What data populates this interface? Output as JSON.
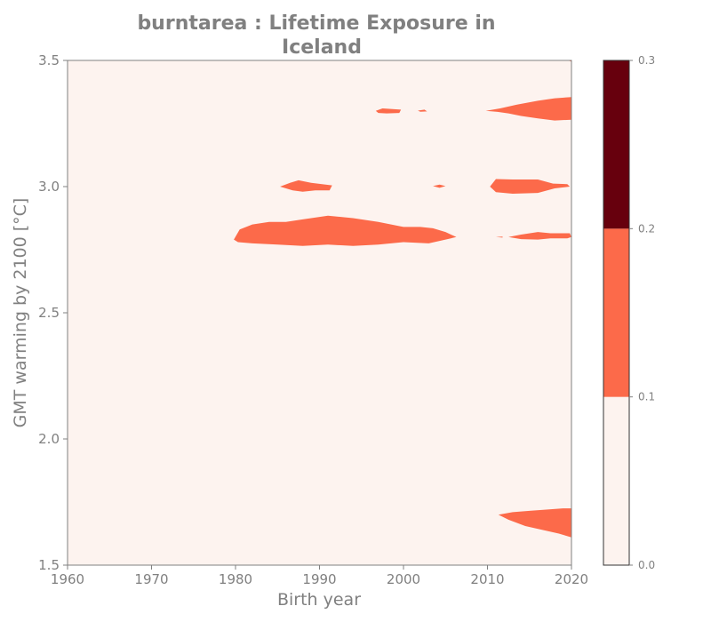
{
  "chart_data": {
    "type": "heatmap",
    "title_lines": [
      "burntarea : Lifetime Exposure in",
      "Iceland"
    ],
    "xlabel": "Birth year",
    "ylabel": "GMT warming by 2100 [°C]",
    "xlim": [
      1960,
      2020
    ],
    "ylim": [
      1.5,
      3.5
    ],
    "x_ticks": [
      "1960",
      "1970",
      "1980",
      "1990",
      "2000",
      "2010",
      "2020"
    ],
    "y_ticks": [
      "1.5",
      "2.0",
      "2.5",
      "3.0",
      "3.5"
    ],
    "colorbar": {
      "ticks": [
        "0.0",
        "0.1",
        "0.2",
        "0.3"
      ],
      "levels": [
        0.0,
        0.1,
        0.2,
        0.3
      ],
      "colors": [
        "#fdf3ef",
        "#fc6a4a",
        "#67000d"
      ]
    },
    "background_level_color": "#fdf3ef",
    "regions": [
      {
        "level": "0.1-0.2",
        "points": [
          [
            1979.8,
            2.79
          ],
          [
            1980.5,
            2.83
          ],
          [
            1982,
            2.85
          ],
          [
            1984,
            2.86
          ],
          [
            1986,
            2.86
          ],
          [
            1988,
            2.87
          ],
          [
            1991,
            2.885
          ],
          [
            1994,
            2.875
          ],
          [
            1997,
            2.86
          ],
          [
            2000,
            2.84
          ],
          [
            2002,
            2.84
          ],
          [
            2003.5,
            2.835
          ],
          [
            2005,
            2.82
          ],
          [
            2006.3,
            2.8
          ],
          [
            2005,
            2.79
          ],
          [
            2003,
            2.775
          ],
          [
            2000,
            2.78
          ],
          [
            1997,
            2.77
          ],
          [
            1994,
            2.765
          ],
          [
            1991,
            2.77
          ],
          [
            1988,
            2.765
          ],
          [
            1985,
            2.77
          ],
          [
            1982,
            2.775
          ],
          [
            1980.3,
            2.78
          ]
        ]
      },
      {
        "level": "0.1-0.2",
        "points": [
          [
            1985.3,
            3.0
          ],
          [
            1986.5,
            3.015
          ],
          [
            1987.5,
            3.025
          ],
          [
            1989,
            3.015
          ],
          [
            1991.5,
            3.005
          ],
          [
            1991.2,
            2.985
          ],
          [
            1989.5,
            2.985
          ],
          [
            1988,
            2.98
          ],
          [
            1986.8,
            2.985
          ]
        ]
      },
      {
        "level": "0.1-0.2",
        "points": [
          [
            2003.5,
            3.002
          ],
          [
            2004.3,
            3.008
          ],
          [
            2005,
            3.002
          ],
          [
            2004.3,
            2.995
          ]
        ]
      },
      {
        "level": "0.1-0.2",
        "points": [
          [
            2010.3,
            3.0
          ],
          [
            2011,
            3.03
          ],
          [
            2013,
            3.028
          ],
          [
            2016,
            3.028
          ],
          [
            2017.8,
            3.012
          ],
          [
            2019.5,
            3.01
          ],
          [
            2019.8,
            3.0
          ],
          [
            2018,
            2.993
          ],
          [
            2016,
            2.975
          ],
          [
            2013,
            2.972
          ],
          [
            2011,
            2.978
          ]
        ]
      },
      {
        "level": "0.1-0.2",
        "points": [
          [
            2011,
            2.8
          ],
          [
            2011.8,
            2.802
          ],
          [
            2011.8,
            2.798
          ]
        ]
      },
      {
        "level": "0.1-0.2",
        "points": [
          [
            2012.5,
            2.8
          ],
          [
            2014,
            2.81
          ],
          [
            2016,
            2.82
          ],
          [
            2017.5,
            2.815
          ],
          [
            2019.8,
            2.815
          ],
          [
            2020,
            2.8
          ],
          [
            2019.5,
            2.795
          ],
          [
            2017.5,
            2.795
          ],
          [
            2016,
            2.79
          ],
          [
            2014,
            2.792
          ]
        ]
      },
      {
        "level": "0.1-0.2",
        "points": [
          [
            1996.7,
            3.3
          ],
          [
            1997.5,
            3.31
          ],
          [
            1999.7,
            3.305
          ],
          [
            1999.5,
            3.292
          ],
          [
            1998,
            3.29
          ],
          [
            1997,
            3.292
          ]
        ]
      },
      {
        "level": "0.1-0.2",
        "points": [
          [
            2001.7,
            3.301
          ],
          [
            2002.5,
            3.305
          ],
          [
            2002.8,
            3.298
          ],
          [
            2002,
            3.297
          ]
        ]
      },
      {
        "level": "0.1-0.2",
        "points": [
          [
            2009.8,
            3.3
          ],
          [
            2011.5,
            3.31
          ],
          [
            2013.5,
            3.325
          ],
          [
            2016,
            3.34
          ],
          [
            2018,
            3.35
          ],
          [
            2020,
            3.355
          ],
          [
            2020,
            3.265
          ],
          [
            2018,
            3.262
          ],
          [
            2016,
            3.27
          ],
          [
            2014,
            3.28
          ],
          [
            2012.5,
            3.29
          ],
          [
            2011.2,
            3.296
          ]
        ]
      },
      {
        "level": "0.1-0.2",
        "points": [
          [
            2019.6,
            3.5
          ],
          [
            2020,
            3.5
          ],
          [
            2020,
            3.495
          ]
        ]
      },
      {
        "level": "0.1-0.2",
        "points": [
          [
            2011.3,
            1.7
          ],
          [
            2013,
            1.71
          ],
          [
            2015,
            1.715
          ],
          [
            2017,
            1.72
          ],
          [
            2019,
            1.725
          ],
          [
            2020,
            1.725
          ],
          [
            2020,
            1.61
          ],
          [
            2018.5,
            1.625
          ],
          [
            2016.5,
            1.64
          ],
          [
            2014.5,
            1.655
          ],
          [
            2012.5,
            1.68
          ]
        ]
      }
    ]
  }
}
